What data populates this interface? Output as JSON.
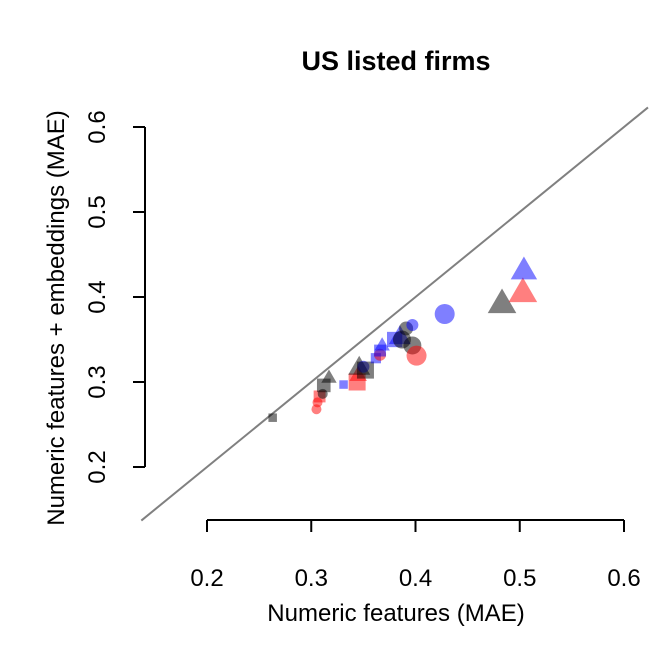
{
  "chart_data": {
    "type": "scatter",
    "title": "US listed firms",
    "xlabel": "Numeric features (MAE)",
    "ylabel": "Numeric features + embeddings (MAE)",
    "xlim": [
      0.2,
      0.6
    ],
    "ylim": [
      0.2,
      0.6
    ],
    "xticks": [
      "0.2",
      "0.3",
      "0.4",
      "0.5",
      "0.6"
    ],
    "yticks": [
      "0.2",
      "0.3",
      "0.4",
      "0.5",
      "0.6"
    ],
    "reference_line": "y = x",
    "grid": false,
    "legend": "none",
    "colors": {
      "black": "#000000",
      "red": "#ff0000",
      "blue": "#0000ff",
      "reference": "#808080"
    },
    "opacity": 0.5,
    "points": [
      {
        "x": 0.263,
        "y": 0.258,
        "shape": "square",
        "color": "black",
        "size": 1
      },
      {
        "x": 0.305,
        "y": 0.268,
        "shape": "circle",
        "color": "red",
        "size": 1
      },
      {
        "x": 0.306,
        "y": 0.276,
        "shape": "circle",
        "color": "red",
        "size": 1
      },
      {
        "x": 0.308,
        "y": 0.283,
        "shape": "square",
        "color": "red",
        "size": 1.4
      },
      {
        "x": 0.311,
        "y": 0.286,
        "shape": "circle",
        "color": "black",
        "size": 1
      },
      {
        "x": 0.312,
        "y": 0.296,
        "shape": "square",
        "color": "black",
        "size": 1.6
      },
      {
        "x": 0.317,
        "y": 0.305,
        "shape": "triangle",
        "color": "black",
        "size": 1.4
      },
      {
        "x": 0.331,
        "y": 0.297,
        "shape": "square",
        "color": "blue",
        "size": 1
      },
      {
        "x": 0.344,
        "y": 0.3,
        "shape": "square",
        "color": "red",
        "size": 2
      },
      {
        "x": 0.345,
        "y": 0.308,
        "shape": "triangle",
        "color": "red",
        "size": 1.6
      },
      {
        "x": 0.346,
        "y": 0.317,
        "shape": "triangle",
        "color": "black",
        "size": 2
      },
      {
        "x": 0.35,
        "y": 0.318,
        "shape": "circle",
        "color": "blue",
        "size": 1.2
      },
      {
        "x": 0.352,
        "y": 0.314,
        "shape": "square",
        "color": "black",
        "size": 2
      },
      {
        "x": 0.362,
        "y": 0.328,
        "shape": "square",
        "color": "blue",
        "size": 1.2
      },
      {
        "x": 0.366,
        "y": 0.332,
        "shape": "circle",
        "color": "red",
        "size": 1.2
      },
      {
        "x": 0.366,
        "y": 0.337,
        "shape": "square",
        "color": "blue",
        "size": 1.4
      },
      {
        "x": 0.368,
        "y": 0.343,
        "shape": "triangle",
        "color": "blue",
        "size": 1.4
      },
      {
        "x": 0.38,
        "y": 0.35,
        "shape": "square",
        "color": "blue",
        "size": 1.8
      },
      {
        "x": 0.385,
        "y": 0.353,
        "shape": "triangle",
        "color": "blue",
        "size": 2
      },
      {
        "x": 0.387,
        "y": 0.35,
        "shape": "circle",
        "color": "black",
        "size": 1.8
      },
      {
        "x": 0.391,
        "y": 0.363,
        "shape": "circle",
        "color": "black",
        "size": 1.4
      },
      {
        "x": 0.397,
        "y": 0.367,
        "shape": "circle",
        "color": "blue",
        "size": 1.2
      },
      {
        "x": 0.397,
        "y": 0.343,
        "shape": "circle",
        "color": "black",
        "size": 1.8
      },
      {
        "x": 0.401,
        "y": 0.331,
        "shape": "circle",
        "color": "red",
        "size": 2
      },
      {
        "x": 0.428,
        "y": 0.38,
        "shape": "circle",
        "color": "blue",
        "size": 2
      },
      {
        "x": 0.483,
        "y": 0.392,
        "shape": "triangle",
        "color": "black",
        "size": 2.6
      },
      {
        "x": 0.503,
        "y": 0.405,
        "shape": "triangle",
        "color": "red",
        "size": 2.6
      },
      {
        "x": 0.504,
        "y": 0.431,
        "shape": "triangle",
        "color": "blue",
        "size": 2.4
      }
    ]
  }
}
